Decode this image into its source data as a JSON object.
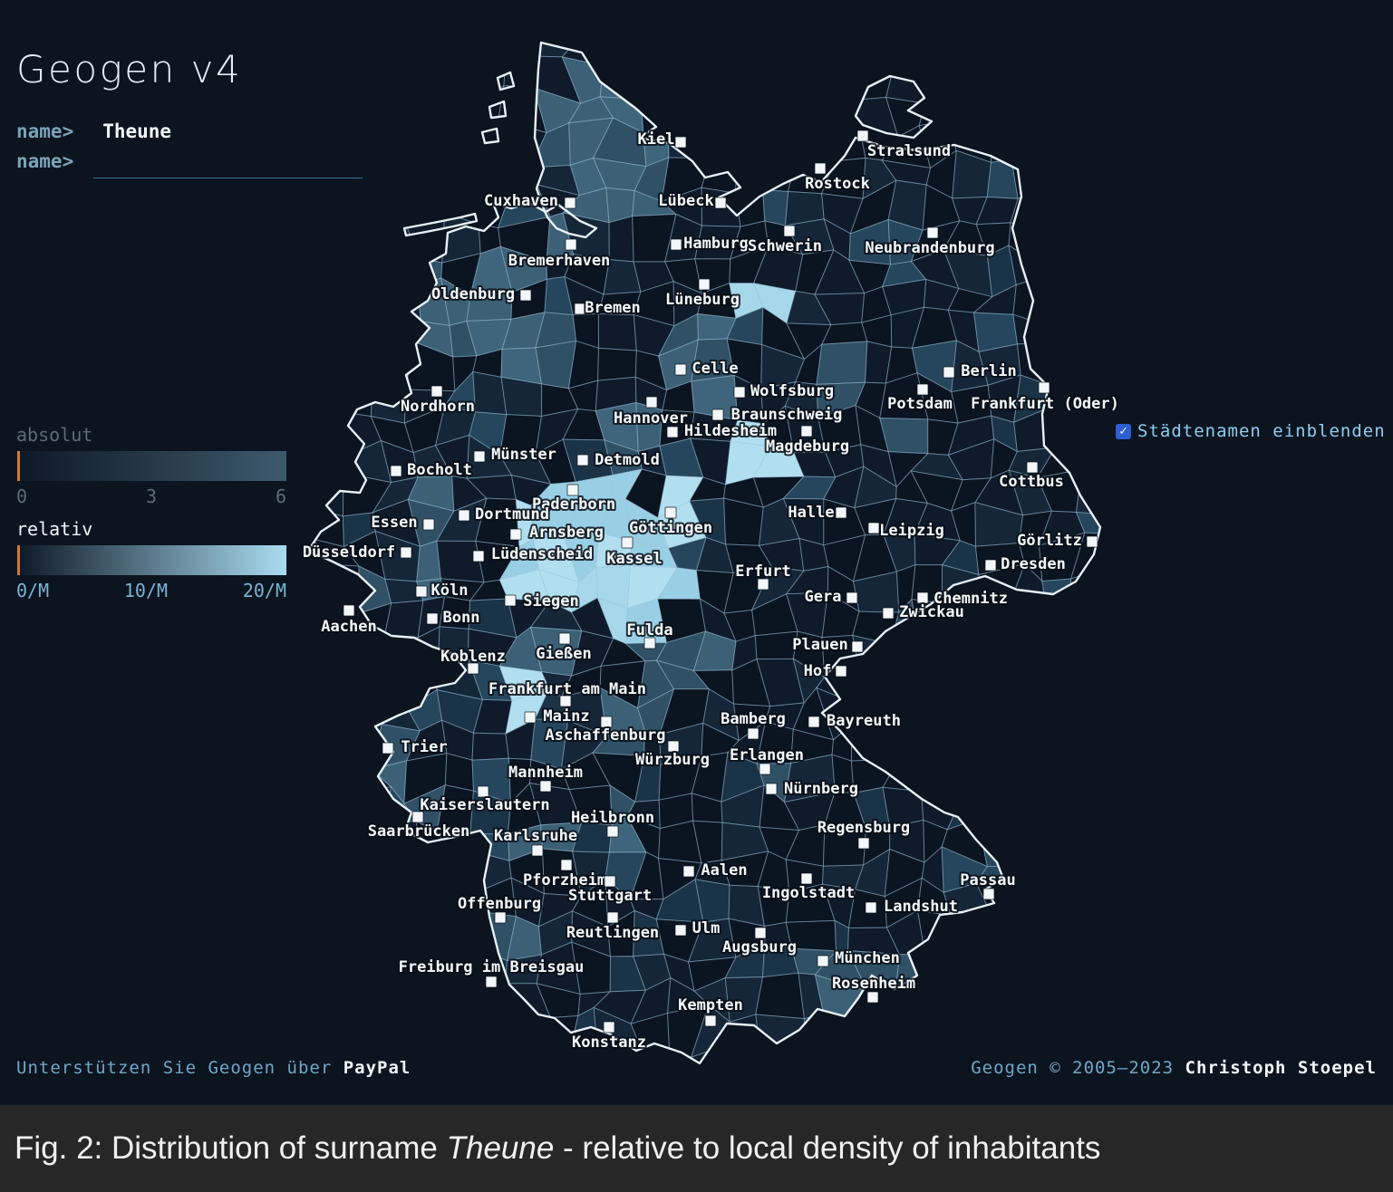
{
  "app": {
    "title": "Geogen v4"
  },
  "query": {
    "prompt": "name>",
    "submitted_value": "Theune",
    "input_prompt": "name>",
    "input_value": ""
  },
  "legend": {
    "absolut": {
      "title": "absolut",
      "ticks": [
        "0",
        "3",
        "6"
      ],
      "gradient_start": "#0e1826",
      "gradient_end": "#3d5a6c",
      "marker_color": "#d07832"
    },
    "relativ": {
      "title": "relativ",
      "ticks": [
        "0/M",
        "10/M",
        "20/M"
      ],
      "gradient_start": "#0e1826",
      "gradient_end": "#a9dcf0",
      "marker_color": "#d07832"
    }
  },
  "controls": {
    "city_names": {
      "label": "Städtenamen einblenden",
      "checked": true,
      "checkbox_color": "#2e5fd0",
      "check_glyph": "✓"
    }
  },
  "footer": {
    "support_prefix": "Unterstützen Sie Geogen über ",
    "support_link": "PayPal",
    "copyright_prefix": "Geogen © 2005–2023 ",
    "copyright_author": "Christoph Stoepel"
  },
  "caption": {
    "prefix": "Fig. 2: Distribution of surname ",
    "surname": "Theune",
    "suffix": " - relative to local density of inhabitants"
  },
  "map": {
    "colors": {
      "background": "#0c1420",
      "land": "#0c1623",
      "outline": "#e9f2f8",
      "district_line": "rgba(163,203,228,0.45)",
      "hot": "#a6d7ea",
      "mid": "#3f657d",
      "marker": "#f4f7f9",
      "label": "#f5f9fb"
    },
    "cities": [
      {
        "name": "Kiel",
        "marker": [
          751,
          157
        ],
        "label": [
          724,
          154
        ]
      },
      {
        "name": "Stralsund",
        "marker": [
          952,
          150
        ],
        "label": [
          1003,
          167
        ]
      },
      {
        "name": "Rostock",
        "marker": [
          905,
          186
        ],
        "label": [
          924,
          203
        ]
      },
      {
        "name": "Cuxhaven",
        "marker": [
          629,
          224
        ],
        "label": [
          575,
          222
        ]
      },
      {
        "name": "Lübeck",
        "marker": [
          795,
          224
        ],
        "label": [
          757,
          222
        ]
      },
      {
        "name": "Hamburg",
        "marker": [
          746,
          270
        ],
        "label": [
          790,
          269
        ]
      },
      {
        "name": "Schwerin",
        "marker": [
          871,
          255
        ],
        "label": [
          866,
          272
        ]
      },
      {
        "name": "Neubrandenburg",
        "marker": [
          1029,
          257
        ],
        "label": [
          1026,
          274
        ]
      },
      {
        "name": "Bremerhaven",
        "marker": [
          630,
          270
        ],
        "label": [
          617,
          288
        ]
      },
      {
        "name": "Oldenburg",
        "marker": [
          580,
          326
        ],
        "label": [
          522,
          325
        ]
      },
      {
        "name": "Bremen",
        "marker": [
          640,
          341
        ],
        "label": [
          676,
          340
        ]
      },
      {
        "name": "Lüneburg",
        "marker": [
          777,
          314
        ],
        "label": [
          775,
          331
        ]
      },
      {
        "name": "Celle",
        "marker": [
          751,
          408
        ],
        "label": [
          789,
          407
        ]
      },
      {
        "name": "Wolfsburg",
        "marker": [
          816,
          433
        ],
        "label": [
          874,
          432
        ]
      },
      {
        "name": "Braunschweig",
        "marker": [
          792,
          458
        ],
        "label": [
          868,
          458
        ]
      },
      {
        "name": "Hannover",
        "marker": [
          719,
          444
        ],
        "label": [
          718,
          462
        ]
      },
      {
        "name": "Hildesheim",
        "marker": [
          742,
          477
        ],
        "label": [
          806,
          476
        ]
      },
      {
        "name": "Magdeburg",
        "marker": [
          890,
          476
        ],
        "label": [
          891,
          493
        ]
      },
      {
        "name": "Berlin",
        "marker": [
          1047,
          411
        ],
        "label": [
          1091,
          410
        ]
      },
      {
        "name": "Potsdam",
        "marker": [
          1018,
          430
        ],
        "label": [
          1015,
          446
        ]
      },
      {
        "name": "Frankfurt (Oder)",
        "marker": [
          1152,
          428
        ],
        "label": [
          1153,
          446
        ]
      },
      {
        "name": "Nordhorn",
        "marker": [
          482,
          432
        ],
        "label": [
          483,
          449
        ]
      },
      {
        "name": "Münster",
        "marker": [
          529,
          504
        ],
        "label": [
          578,
          502
        ]
      },
      {
        "name": "Detmold",
        "marker": [
          643,
          508
        ],
        "label": [
          692,
          508
        ]
      },
      {
        "name": "Bocholt",
        "marker": [
          437,
          520
        ],
        "label": [
          485,
          519
        ]
      },
      {
        "name": "Cottbus",
        "marker": [
          1139,
          516
        ],
        "label": [
          1138,
          532
        ]
      },
      {
        "name": "Paderborn",
        "marker": [
          632,
          541
        ],
        "label": [
          633,
          557
        ]
      },
      {
        "name": "Halle",
        "marker": [
          928,
          566
        ],
        "label": [
          895,
          566
        ]
      },
      {
        "name": "Essen",
        "marker": [
          473,
          579
        ],
        "label": [
          435,
          577
        ]
      },
      {
        "name": "Dortmund",
        "marker": [
          512,
          569
        ],
        "label": [
          565,
          568
        ]
      },
      {
        "name": "Arnsberg",
        "marker": [
          569,
          590
        ],
        "label": [
          625,
          588
        ]
      },
      {
        "name": "Göttingen",
        "marker": [
          740,
          566
        ],
        "label": [
          740,
          583
        ]
      },
      {
        "name": "Leipzig",
        "marker": [
          964,
          583
        ],
        "label": [
          1006,
          586
        ]
      },
      {
        "name": "Görlitz",
        "marker": [
          1205,
          598
        ],
        "label": [
          1158,
          597
        ]
      },
      {
        "name": "Düsseldorf",
        "marker": [
          448,
          610
        ],
        "label": [
          385,
          610
        ]
      },
      {
        "name": "Lüdenscheid",
        "marker": [
          528,
          614
        ],
        "label": [
          598,
          612
        ]
      },
      {
        "name": "Kassel",
        "marker": [
          692,
          599
        ],
        "label": [
          700,
          617
        ]
      },
      {
        "name": "Dresden",
        "marker": [
          1093,
          624
        ],
        "label": [
          1140,
          623
        ]
      },
      {
        "name": "Erfurt",
        "marker": [
          842,
          645
        ],
        "label": [
          842,
          631
        ]
      },
      {
        "name": "Köln",
        "marker": [
          465,
          653
        ],
        "label": [
          496,
          652
        ]
      },
      {
        "name": "Gera",
        "marker": [
          940,
          660
        ],
        "label": [
          908,
          659
        ]
      },
      {
        "name": "Chemnitz",
        "marker": [
          1018,
          660
        ],
        "label": [
          1071,
          661
        ]
      },
      {
        "name": "Zwickau",
        "marker": [
          980,
          677
        ],
        "label": [
          1028,
          676
        ]
      },
      {
        "name": "Siegen",
        "marker": [
          563,
          663
        ],
        "label": [
          608,
          664
        ]
      },
      {
        "name": "Bonn",
        "marker": [
          477,
          683
        ],
        "label": [
          509,
          682
        ]
      },
      {
        "name": "Aachen",
        "marker": [
          385,
          674
        ],
        "label": [
          385,
          692
        ]
      },
      {
        "name": "Fulda",
        "marker": [
          717,
          710
        ],
        "label": [
          717,
          696
        ]
      },
      {
        "name": "Plauen",
        "marker": [
          946,
          714
        ],
        "label": [
          905,
          712
        ]
      },
      {
        "name": "Hof",
        "marker": [
          928,
          741
        ],
        "label": [
          902,
          741
        ]
      },
      {
        "name": "Koblenz",
        "marker": [
          522,
          738
        ],
        "label": [
          522,
          725
        ]
      },
      {
        "name": "Gießen",
        "marker": [
          623,
          705
        ],
        "label": [
          622,
          722
        ]
      },
      {
        "name": "Frankfurt am Main",
        "marker": [
          624,
          774
        ],
        "label": [
          626,
          761
        ]
      },
      {
        "name": "Mainz",
        "marker": [
          585,
          792
        ],
        "label": [
          625,
          791
        ]
      },
      {
        "name": "Aschaffenburg",
        "marker": [
          669,
          797
        ],
        "label": [
          668,
          812
        ]
      },
      {
        "name": "Bamberg",
        "marker": [
          831,
          810
        ],
        "label": [
          831,
          794
        ]
      },
      {
        "name": "Bayreuth",
        "marker": [
          898,
          797
        ],
        "label": [
          953,
          796
        ]
      },
      {
        "name": "Trier",
        "marker": [
          428,
          826
        ],
        "label": [
          468,
          825
        ]
      },
      {
        "name": "Würzburg",
        "marker": [
          743,
          824
        ],
        "label": [
          742,
          839
        ]
      },
      {
        "name": "Erlangen",
        "marker": [
          844,
          849
        ],
        "label": [
          846,
          834
        ]
      },
      {
        "name": "Mannheim",
        "marker": [
          602,
          868
        ],
        "label": [
          602,
          853
        ]
      },
      {
        "name": "Nürnberg",
        "marker": [
          851,
          871
        ],
        "label": [
          906,
          871
        ]
      },
      {
        "name": "Kaiserslautern",
        "marker": [
          533,
          874
        ],
        "label": [
          535,
          889
        ]
      },
      {
        "name": "Saarbrücken",
        "marker": [
          461,
          902
        ],
        "label": [
          462,
          918
        ]
      },
      {
        "name": "Heilbronn",
        "marker": [
          676,
          918
        ],
        "label": [
          676,
          903
        ]
      },
      {
        "name": "Karlsruhe",
        "marker": [
          593,
          939
        ],
        "label": [
          591,
          923
        ]
      },
      {
        "name": "Pforzheim",
        "marker": [
          625,
          955
        ],
        "label": [
          623,
          972
        ]
      },
      {
        "name": "Stuttgart",
        "marker": [
          673,
          973
        ],
        "label": [
          673,
          989
        ]
      },
      {
        "name": "Regensburg",
        "marker": [
          953,
          931
        ],
        "label": [
          953,
          914
        ]
      },
      {
        "name": "Aalen",
        "marker": [
          760,
          962
        ],
        "label": [
          799,
          961
        ]
      },
      {
        "name": "Ingolstadt",
        "marker": [
          890,
          970
        ],
        "label": [
          892,
          986
        ]
      },
      {
        "name": "Offenburg",
        "marker": [
          552,
          1013
        ],
        "label": [
          551,
          998
        ]
      },
      {
        "name": "Passau",
        "marker": [
          1091,
          987
        ],
        "label": [
          1090,
          972
        ]
      },
      {
        "name": "Landshut",
        "marker": [
          961,
          1002
        ],
        "label": [
          1016,
          1001
        ]
      },
      {
        "name": "Reutlingen",
        "marker": [
          676,
          1013
        ],
        "label": [
          676,
          1030
        ]
      },
      {
        "name": "Ulm",
        "marker": [
          751,
          1027
        ],
        "label": [
          779,
          1025
        ]
      },
      {
        "name": "Augsburg",
        "marker": [
          839,
          1030
        ],
        "label": [
          838,
          1046
        ]
      },
      {
        "name": "München",
        "marker": [
          908,
          1061
        ],
        "label": [
          957,
          1058
        ]
      },
      {
        "name": "Freiburg im Breisgau",
        "marker": [
          542,
          1084
        ],
        "label": [
          542,
          1068
        ]
      },
      {
        "name": "Rosenheim",
        "marker": [
          963,
          1101
        ],
        "label": [
          964,
          1086
        ]
      },
      {
        "name": "Kempten",
        "marker": [
          784,
          1127
        ],
        "label": [
          784,
          1110
        ]
      },
      {
        "name": "Konstanz",
        "marker": [
          672,
          1134
        ],
        "label": [
          672,
          1151
        ]
      }
    ]
  }
}
